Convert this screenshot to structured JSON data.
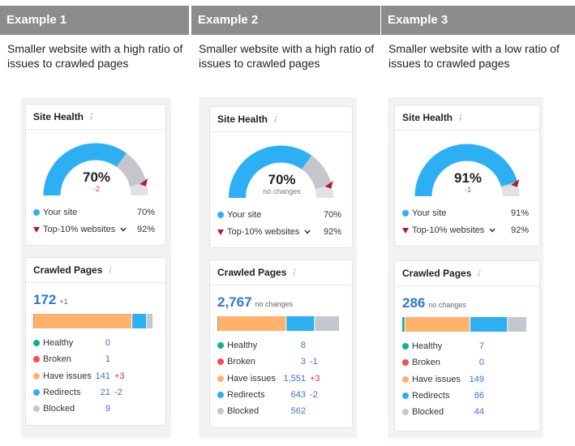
{
  "examples": [
    {
      "header": "Example 1",
      "description": "Smaller website with a high ratio of issues to crawled pages",
      "site_health": {
        "title": "Site Health",
        "score": {
          "value": 70,
          "label": "70%"
        },
        "change": "-2",
        "your_site": {
          "label": "Your site",
          "value": {
            "value": 70,
            "label": "70%"
          }
        },
        "top10": {
          "label": "Top-10% websites",
          "value": {
            "value": 92,
            "label": "92%"
          }
        }
      },
      "crawled_pages": {
        "title": "Crawled Pages",
        "total": 172,
        "change": "+1",
        "rows": [
          {
            "name": "Healthy",
            "count": 0
          },
          {
            "name": "Broken",
            "count": 1
          },
          {
            "name": "Have issues",
            "count": 141,
            "change": "+3"
          },
          {
            "name": "Redirects",
            "count": 21,
            "change": "-2"
          },
          {
            "name": "Blocked",
            "count": 9
          }
        ]
      }
    },
    {
      "header": "Example 2",
      "description": "Smaller website with a high ratio of issues to crawled pages",
      "site_health": {
        "title": "Site Health",
        "score": {
          "value": 70,
          "label": "70%"
        },
        "change": "no changes",
        "your_site": {
          "label": "Your site",
          "value": {
            "value": 70,
            "label": "70%"
          }
        },
        "top10": {
          "label": "Top-10% websites",
          "value": {
            "value": 92,
            "label": "92%"
          }
        }
      },
      "crawled_pages": {
        "title": "Crawled Pages",
        "total": {
          "value": 2767,
          "label": "2,767"
        },
        "change": "no changes",
        "rows": [
          {
            "name": "Healthy",
            "count": 8
          },
          {
            "name": "Broken",
            "count": 3,
            "change": "-1"
          },
          {
            "name": "Have issues",
            "count": {
              "value": 1551,
              "label": "1,551"
            },
            "change": "+3"
          },
          {
            "name": "Redirects",
            "count": 643,
            "change": "-2"
          },
          {
            "name": "Blocked",
            "count": 562
          }
        ]
      }
    },
    {
      "header": "Example 3",
      "description": "Smaller website with a low ratio of issues to crawled pages",
      "site_health": {
        "title": "Site Health",
        "score": {
          "value": 91,
          "label": "91%"
        },
        "change": "-1",
        "your_site": {
          "label": "Your site",
          "value": {
            "value": 91,
            "label": "91%"
          }
        },
        "top10": {
          "label": "Top-10% websites",
          "value": {
            "value": 92,
            "label": "92%"
          }
        }
      },
      "crawled_pages": {
        "title": "Crawled Pages",
        "total": 286,
        "change": "no changes",
        "rows": [
          {
            "name": "Healthy",
            "count": 7
          },
          {
            "name": "Broken",
            "count": 0
          },
          {
            "name": "Have issues",
            "count": 149
          },
          {
            "name": "Redirects",
            "count": 86
          },
          {
            "name": "Blocked",
            "count": 44
          }
        ]
      }
    }
  ]
}
